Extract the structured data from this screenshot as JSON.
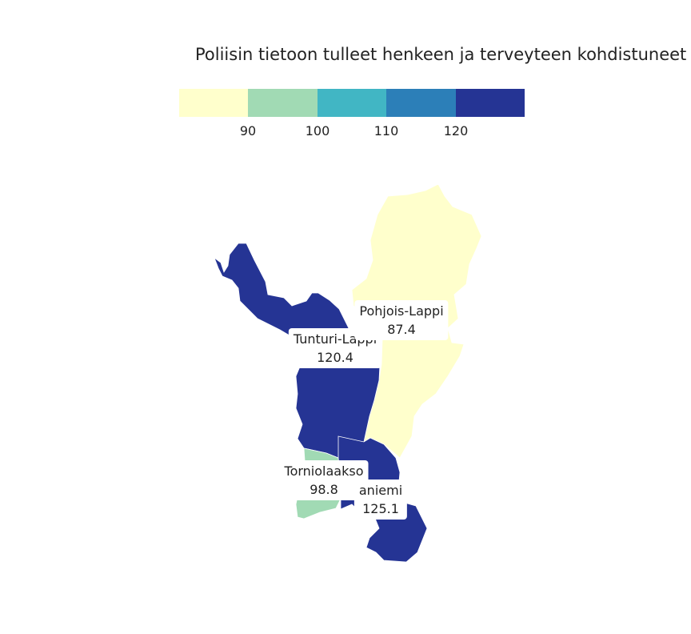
{
  "title": "Poliisin tietoon tulleet henkeen ja terveyteen kohdistuneet",
  "legend": {
    "colors": [
      "#ffffcc",
      "#a1dab4",
      "#41b6c4",
      "#2c7fb8",
      "#253494"
    ],
    "ticks": [
      "90",
      "100",
      "110",
      "120"
    ]
  },
  "regions": [
    {
      "name": "Tunturi-Lappi",
      "value": "120.4",
      "color": "#253494"
    },
    {
      "name": "Pohjois-Lappi",
      "value": "87.4",
      "color": "#ffffcc"
    },
    {
      "name": "Torniolaakso",
      "value": "98.8",
      "color": "#a1dab4"
    },
    {
      "name": "aniemi",
      "value": "125.1",
      "color": "#253494"
    }
  ]
}
